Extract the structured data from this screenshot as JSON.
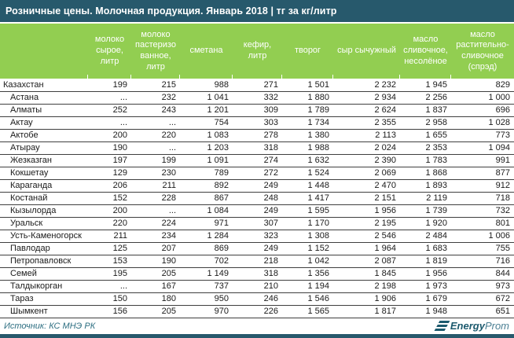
{
  "title": "Розничные цены. Молочная продукция. Январь 2018 | тг за кг/литр",
  "chart_data": {
    "type": "table",
    "title": "Розничные цены. Молочная продукция. Январь 2018 | тг за кг/литр",
    "unit": "тг за кг/литр",
    "region_column_header": "",
    "columns": [
      "молоко сырое, литр",
      "молоко пастеризо\nванное, литр",
      "сметана",
      "кефир, литр",
      "творог",
      "сыр сычужный",
      "масло сливочное, несолёное",
      "масло растительно-сливочное (спрэд)"
    ],
    "rows": [
      {
        "region": "Казахстан",
        "indent": false,
        "values": [
          "199",
          "215",
          "988",
          "271",
          "1 501",
          "2 232",
          "1 945",
          "829"
        ]
      },
      {
        "region": "Астана",
        "indent": true,
        "values": [
          "...",
          "232",
          "1 041",
          "332",
          "1 880",
          "2 934",
          "2 256",
          "1 000"
        ]
      },
      {
        "region": "Алматы",
        "indent": true,
        "values": [
          "252",
          "243",
          "1 201",
          "309",
          "1 789",
          "2 624",
          "1 837",
          "696"
        ]
      },
      {
        "region": "Актау",
        "indent": true,
        "values": [
          "...",
          "...",
          "754",
          "303",
          "1 734",
          "2 355",
          "2 958",
          "1 028"
        ]
      },
      {
        "region": "Актобе",
        "indent": true,
        "values": [
          "200",
          "220",
          "1 083",
          "278",
          "1 380",
          "2 113",
          "1 655",
          "773"
        ]
      },
      {
        "region": "Атырау",
        "indent": true,
        "values": [
          "190",
          "...",
          "1 203",
          "318",
          "1 988",
          "2 024",
          "2 353",
          "1 094"
        ]
      },
      {
        "region": "Жезказган",
        "indent": true,
        "values": [
          "197",
          "199",
          "1 091",
          "274",
          "1 632",
          "2 390",
          "1 783",
          "991"
        ]
      },
      {
        "region": "Кокшетау",
        "indent": true,
        "values": [
          "129",
          "230",
          "789",
          "272",
          "1 524",
          "2 069",
          "1 868",
          "877"
        ]
      },
      {
        "region": "Караганда",
        "indent": true,
        "values": [
          "206",
          "211",
          "892",
          "249",
          "1 448",
          "2 470",
          "1 893",
          "912"
        ]
      },
      {
        "region": "Костанай",
        "indent": true,
        "values": [
          "152",
          "228",
          "867",
          "248",
          "1 417",
          "2 151",
          "2 119",
          "718"
        ]
      },
      {
        "region": "Кызылорда",
        "indent": true,
        "values": [
          "200",
          "...",
          "1 084",
          "249",
          "1 595",
          "1 956",
          "1 739",
          "732"
        ]
      },
      {
        "region": "Уральск",
        "indent": true,
        "values": [
          "220",
          "224",
          "971",
          "307",
          "1 170",
          "2 195",
          "1 920",
          "801"
        ]
      },
      {
        "region": "Усть-Каменогорск",
        "indent": true,
        "values": [
          "211",
          "234",
          "1 284",
          "323",
          "1 308",
          "2 546",
          "2 484",
          "1 006"
        ]
      },
      {
        "region": "Павлодар",
        "indent": true,
        "values": [
          "125",
          "207",
          "869",
          "249",
          "1 152",
          "1 964",
          "1 683",
          "755"
        ]
      },
      {
        "region": "Петропавловск",
        "indent": true,
        "values": [
          "153",
          "190",
          "702",
          "218",
          "1 042",
          "2 087",
          "1 819",
          "716"
        ]
      },
      {
        "region": "Семей",
        "indent": true,
        "values": [
          "195",
          "205",
          "1 149",
          "318",
          "1 356",
          "1 845",
          "1 956",
          "844"
        ]
      },
      {
        "region": "Талдыкорган",
        "indent": true,
        "values": [
          "...",
          "167",
          "737",
          "210",
          "1 194",
          "2 198",
          "1 973",
          "973"
        ]
      },
      {
        "region": "Тараз",
        "indent": true,
        "values": [
          "150",
          "180",
          "950",
          "246",
          "1 546",
          "1 906",
          "1 679",
          "672"
        ]
      },
      {
        "region": "Шымкент",
        "indent": true,
        "values": [
          "156",
          "205",
          "970",
          "226",
          "1 565",
          "1 817",
          "1 948",
          "651"
        ]
      }
    ]
  },
  "footer": {
    "source": "Источник: КС МНЭ РК",
    "brand": {
      "bold": "Energy",
      "light": "Prom"
    }
  },
  "colors": {
    "title_bar": "#27596c",
    "header_green": "#92ce51",
    "row_border": "#3f3f3f",
    "source_text": "#2e6f82",
    "logo_dark": "#1d5a6e",
    "logo_light": "#4c8094"
  }
}
